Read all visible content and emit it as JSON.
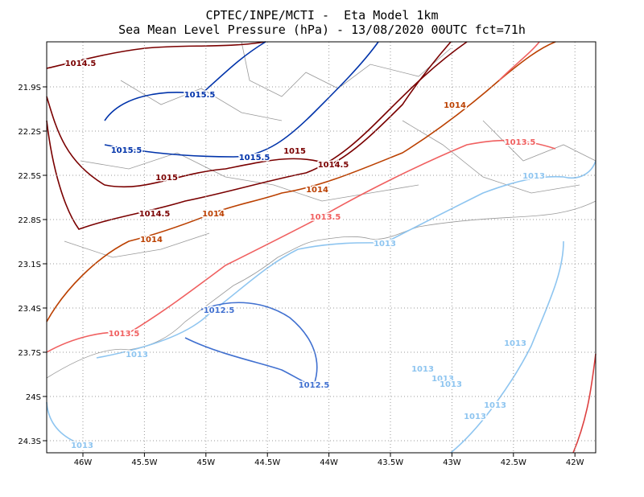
{
  "header": {
    "title": "CPTEC/INPE/MCTI -  Eta Model 1km",
    "subtitle": "Sea Mean Level Pressure (hPa) - 13/08/2020 00UTC fct=71h"
  },
  "axes": {
    "x_labels": [
      "46W",
      "45.5W",
      "45W",
      "44.5W",
      "44W",
      "43.5W",
      "43W",
      "42.5W",
      "42W"
    ],
    "y_labels": [
      "21.9S",
      "22.2S",
      "22.5S",
      "22.8S",
      "23.1S",
      "23.4S",
      "23.7S",
      "24S",
      "24.3S"
    ]
  },
  "contour_labels": [
    "1014.5",
    "1015.5",
    "1015.5",
    "1015.5",
    "1015",
    "1014.5",
    "1015",
    "1014",
    "1013.5",
    "1013",
    "1014",
    "1014.5",
    "1014",
    "1013.5",
    "1014",
    "1013",
    "1012.5",
    "1013.5",
    "1013",
    "1013",
    "1012.5",
    "1013",
    "1013",
    "1013",
    "1013",
    "1013",
    "1013"
  ]
}
